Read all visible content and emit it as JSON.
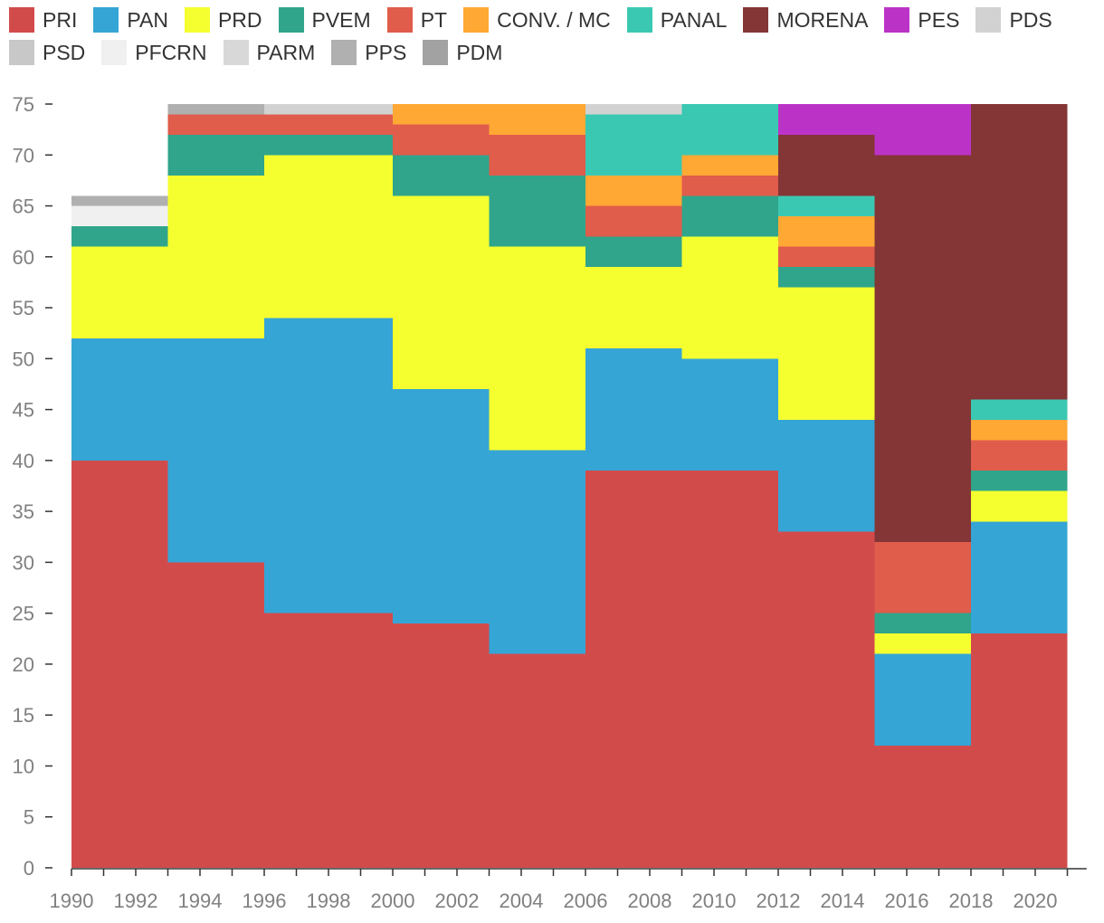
{
  "chart_data": {
    "type": "area",
    "title": "",
    "xlabel": "",
    "ylabel": "",
    "ylim": [
      0,
      75
    ],
    "y_ticks": [
      "0",
      "5",
      "10",
      "15",
      "20",
      "25",
      "30",
      "35",
      "40",
      "45",
      "50",
      "55",
      "60",
      "65",
      "70",
      "75"
    ],
    "x_tick_labels": [
      "1990",
      "1992",
      "1994",
      "1996",
      "1998",
      "2000",
      "2002",
      "2004",
      "2006",
      "2008",
      "2010",
      "2012",
      "2014",
      "2016",
      "2018",
      "2020"
    ],
    "legend_position": "top",
    "grid": false,
    "legislatures": [
      {
        "start": 1990,
        "end": 1993
      },
      {
        "start": 1993,
        "end": 1996
      },
      {
        "start": 1996,
        "end": 2000
      },
      {
        "start": 2000,
        "end": 2003
      },
      {
        "start": 2003,
        "end": 2006
      },
      {
        "start": 2006,
        "end": 2009
      },
      {
        "start": 2009,
        "end": 2012
      },
      {
        "start": 2012,
        "end": 2015
      },
      {
        "start": 2015,
        "end": 2018
      },
      {
        "start": 2018,
        "end": 2021
      }
    ],
    "series": [
      {
        "name": "PRI",
        "color": "#d24b4b",
        "values": [
          40,
          30,
          25,
          24,
          21,
          39,
          39,
          33,
          12,
          23
        ]
      },
      {
        "name": "PAN",
        "color": "#35a5d5",
        "values": [
          12,
          22,
          29,
          23,
          20,
          12,
          11,
          11,
          9,
          11
        ]
      },
      {
        "name": "PRD",
        "color": "#f5ff30",
        "values": [
          9,
          16,
          16,
          19,
          20,
          8,
          12,
          13,
          2,
          3
        ]
      },
      {
        "name": "PVEM",
        "color": "#30a58b",
        "values": [
          2,
          4,
          2,
          4,
          7,
          3,
          4,
          2,
          2,
          2
        ]
      },
      {
        "name": "PT",
        "color": "#e05c4b",
        "values": [
          0,
          2,
          2,
          3,
          4,
          3,
          2,
          2,
          7,
          3
        ]
      },
      {
        "name": "CONV. / MC",
        "color": "#ffa834",
        "values": [
          0,
          0,
          0,
          2,
          3,
          3,
          2,
          3,
          0,
          2
        ]
      },
      {
        "name": "PANAL",
        "color": "#3bc8b2",
        "values": [
          0,
          0,
          0,
          0,
          0,
          6,
          5,
          2,
          0,
          2
        ]
      },
      {
        "name": "MORENA",
        "color": "#843535",
        "values": [
          0,
          0,
          0,
          0,
          0,
          0,
          0,
          6,
          38,
          29
        ]
      },
      {
        "name": "PES",
        "color": "#bb33c6",
        "values": [
          0,
          0,
          0,
          0,
          0,
          0,
          0,
          3,
          5,
          0
        ]
      },
      {
        "name": "PDS",
        "color": "#d2d2d2",
        "values": [
          0,
          0,
          1,
          0,
          0,
          1,
          0,
          0,
          0,
          0
        ]
      },
      {
        "name": "PSD",
        "color": "#c8c8c8",
        "values": [
          0,
          0,
          0,
          0,
          0,
          0,
          0,
          0,
          0,
          0
        ]
      },
      {
        "name": "PFCRN",
        "color": "#f0f0f0",
        "values": [
          2,
          0,
          0,
          0,
          0,
          0,
          0,
          0,
          0,
          0
        ]
      },
      {
        "name": "PARM",
        "color": "#d8d8d8",
        "values": [
          0,
          0,
          0,
          0,
          0,
          0,
          0,
          0,
          0,
          0
        ]
      },
      {
        "name": "PPS",
        "color": "#b0b0b0",
        "values": [
          1,
          1,
          0,
          0,
          0,
          0,
          0,
          0,
          0,
          0
        ]
      },
      {
        "name": "PDM",
        "color": "#a2a2a2",
        "values": [
          0,
          0,
          0,
          0,
          0,
          0,
          0,
          0,
          0,
          0
        ]
      }
    ]
  }
}
